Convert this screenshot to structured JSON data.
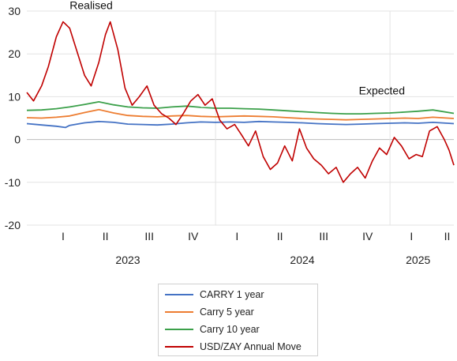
{
  "chart_data": {
    "type": "line",
    "y_ticks": [
      30,
      20,
      10,
      0,
      -10,
      -20
    ],
    "ylim": [
      -20,
      30
    ],
    "x_range": [
      "2022-12-01",
      "2025-05-15"
    ],
    "quarter_labels": [
      {
        "label": "I",
        "date": "2023-02-15"
      },
      {
        "label": "II",
        "date": "2023-05-15"
      },
      {
        "label": "III",
        "date": "2023-08-15"
      },
      {
        "label": "IV",
        "date": "2023-11-15"
      },
      {
        "label": "I",
        "date": "2024-02-15"
      },
      {
        "label": "II",
        "date": "2024-05-15"
      },
      {
        "label": "III",
        "date": "2024-08-15"
      },
      {
        "label": "IV",
        "date": "2024-11-15"
      },
      {
        "label": "I",
        "date": "2025-02-15"
      },
      {
        "label": "II",
        "date": "2025-05-01"
      }
    ],
    "year_labels": [
      {
        "label": "2023",
        "date": "2023-07-01"
      },
      {
        "label": "2024",
        "date": "2024-07-01"
      },
      {
        "label": "2025",
        "date": "2025-03-01"
      }
    ],
    "vertical_markers": [
      "2024-01-01",
      "2025-01-01"
    ],
    "annotations": [
      {
        "text": "Realised",
        "date": "2023-04-15",
        "y": 30.5
      },
      {
        "text": "Expected",
        "date": "2024-12-15",
        "y": 10.5
      }
    ],
    "grid": true,
    "legend_position": "bottom",
    "series": [
      {
        "name": "CARRY 1 year",
        "color": "#4472C4",
        "points": [
          [
            "2022-12-01",
            3.7
          ],
          [
            "2023-01-01",
            3.4
          ],
          [
            "2023-02-01",
            3.1
          ],
          [
            "2023-02-20",
            2.8
          ],
          [
            "2023-03-01",
            3.3
          ],
          [
            "2023-04-01",
            3.9
          ],
          [
            "2023-05-01",
            4.2
          ],
          [
            "2023-06-01",
            4.0
          ],
          [
            "2023-07-01",
            3.6
          ],
          [
            "2023-08-01",
            3.5
          ],
          [
            "2023-09-01",
            3.4
          ],
          [
            "2023-10-01",
            3.6
          ],
          [
            "2023-11-01",
            3.9
          ],
          [
            "2023-12-01",
            4.1
          ],
          [
            "2024-01-01",
            4.0
          ],
          [
            "2024-02-01",
            4.1
          ],
          [
            "2024-03-01",
            4.0
          ],
          [
            "2024-04-01",
            4.2
          ],
          [
            "2024-05-01",
            4.1
          ],
          [
            "2024-06-01",
            4.0
          ],
          [
            "2024-07-01",
            3.9
          ],
          [
            "2024-08-01",
            3.7
          ],
          [
            "2024-09-01",
            3.6
          ],
          [
            "2024-10-01",
            3.5
          ],
          [
            "2024-11-01",
            3.6
          ],
          [
            "2024-12-01",
            3.7
          ],
          [
            "2025-01-01",
            3.8
          ],
          [
            "2025-02-01",
            3.9
          ],
          [
            "2025-03-01",
            3.8
          ],
          [
            "2025-04-01",
            4.0
          ],
          [
            "2025-05-15",
            3.7
          ]
        ]
      },
      {
        "name": "Carry 5 year",
        "color": "#ED7D31",
        "points": [
          [
            "2022-12-01",
            5.1
          ],
          [
            "2023-01-01",
            5.0
          ],
          [
            "2023-02-01",
            5.2
          ],
          [
            "2023-03-01",
            5.5
          ],
          [
            "2023-04-01",
            6.3
          ],
          [
            "2023-05-01",
            7.0
          ],
          [
            "2023-06-01",
            6.2
          ],
          [
            "2023-07-01",
            5.6
          ],
          [
            "2023-08-01",
            5.4
          ],
          [
            "2023-09-01",
            5.3
          ],
          [
            "2023-10-01",
            5.5
          ],
          [
            "2023-11-01",
            5.6
          ],
          [
            "2023-12-01",
            5.4
          ],
          [
            "2024-01-01",
            5.3
          ],
          [
            "2024-02-01",
            5.4
          ],
          [
            "2024-03-01",
            5.5
          ],
          [
            "2024-04-01",
            5.4
          ],
          [
            "2024-05-01",
            5.3
          ],
          [
            "2024-06-01",
            5.1
          ],
          [
            "2024-07-01",
            4.9
          ],
          [
            "2024-08-01",
            4.8
          ],
          [
            "2024-09-01",
            4.7
          ],
          [
            "2024-10-01",
            4.6
          ],
          [
            "2024-11-01",
            4.7
          ],
          [
            "2024-12-01",
            4.8
          ],
          [
            "2025-01-01",
            4.9
          ],
          [
            "2025-02-01",
            5.0
          ],
          [
            "2025-03-01",
            4.9
          ],
          [
            "2025-04-01",
            5.2
          ],
          [
            "2025-05-15",
            4.9
          ]
        ]
      },
      {
        "name": "Carry 10 year",
        "color": "#3BA04A",
        "points": [
          [
            "2022-12-01",
            6.8
          ],
          [
            "2023-01-01",
            6.9
          ],
          [
            "2023-02-01",
            7.2
          ],
          [
            "2023-03-01",
            7.6
          ],
          [
            "2023-04-01",
            8.2
          ],
          [
            "2023-05-01",
            8.8
          ],
          [
            "2023-06-01",
            8.1
          ],
          [
            "2023-07-01",
            7.6
          ],
          [
            "2023-08-01",
            7.4
          ],
          [
            "2023-09-01",
            7.3
          ],
          [
            "2023-10-01",
            7.6
          ],
          [
            "2023-11-01",
            7.8
          ],
          [
            "2023-12-01",
            7.5
          ],
          [
            "2024-01-01",
            7.3
          ],
          [
            "2024-02-01",
            7.3
          ],
          [
            "2024-03-01",
            7.2
          ],
          [
            "2024-04-01",
            7.1
          ],
          [
            "2024-05-01",
            6.9
          ],
          [
            "2024-06-01",
            6.7
          ],
          [
            "2024-07-01",
            6.5
          ],
          [
            "2024-08-01",
            6.3
          ],
          [
            "2024-09-01",
            6.1
          ],
          [
            "2024-10-01",
            6.0
          ],
          [
            "2024-11-01",
            6.0
          ],
          [
            "2024-12-01",
            6.1
          ],
          [
            "2025-01-01",
            6.2
          ],
          [
            "2025-02-01",
            6.4
          ],
          [
            "2025-03-01",
            6.6
          ],
          [
            "2025-04-01",
            6.9
          ],
          [
            "2025-05-15",
            6.1
          ]
        ]
      },
      {
        "name": "USD/ZAY Annual Move",
        "color": "#C00000",
        "points": [
          [
            "2022-12-01",
            11.0
          ],
          [
            "2022-12-15",
            9.0
          ],
          [
            "2023-01-01",
            12.5
          ],
          [
            "2023-01-15",
            17.0
          ],
          [
            "2023-02-01",
            24.0
          ],
          [
            "2023-02-15",
            27.5
          ],
          [
            "2023-03-01",
            26.0
          ],
          [
            "2023-03-15",
            21.0
          ],
          [
            "2023-04-01",
            15.0
          ],
          [
            "2023-04-15",
            12.5
          ],
          [
            "2023-05-01",
            18.0
          ],
          [
            "2023-05-15",
            24.5
          ],
          [
            "2023-05-25",
            27.5
          ],
          [
            "2023-06-10",
            21.0
          ],
          [
            "2023-06-25",
            12.0
          ],
          [
            "2023-07-10",
            8.0
          ],
          [
            "2023-07-25",
            10.0
          ],
          [
            "2023-08-10",
            12.5
          ],
          [
            "2023-08-25",
            8.0
          ],
          [
            "2023-09-10",
            6.0
          ],
          [
            "2023-09-25",
            5.0
          ],
          [
            "2023-10-10",
            3.5
          ],
          [
            "2023-10-25",
            6.0
          ],
          [
            "2023-11-10",
            9.0
          ],
          [
            "2023-11-25",
            10.5
          ],
          [
            "2023-12-10",
            8.0
          ],
          [
            "2023-12-25",
            9.5
          ],
          [
            "2024-01-10",
            4.5
          ],
          [
            "2024-01-25",
            2.5
          ],
          [
            "2024-02-10",
            3.5
          ],
          [
            "2024-02-25",
            1.0
          ],
          [
            "2024-03-10",
            -1.5
          ],
          [
            "2024-03-25",
            2.0
          ],
          [
            "2024-04-10",
            -4.0
          ],
          [
            "2024-04-25",
            -7.0
          ],
          [
            "2024-05-10",
            -5.5
          ],
          [
            "2024-05-25",
            -1.5
          ],
          [
            "2024-06-10",
            -5.0
          ],
          [
            "2024-06-25",
            2.5
          ],
          [
            "2024-07-10",
            -2.0
          ],
          [
            "2024-07-25",
            -4.5
          ],
          [
            "2024-08-10",
            -6.0
          ],
          [
            "2024-08-25",
            -8.0
          ],
          [
            "2024-09-10",
            -6.5
          ],
          [
            "2024-09-25",
            -10.0
          ],
          [
            "2024-10-10",
            -8.0
          ],
          [
            "2024-10-25",
            -6.5
          ],
          [
            "2024-11-10",
            -9.0
          ],
          [
            "2024-11-25",
            -5.0
          ],
          [
            "2024-12-10",
            -2.0
          ],
          [
            "2024-12-25",
            -3.5
          ],
          [
            "2025-01-10",
            0.5
          ],
          [
            "2025-01-25",
            -1.5
          ],
          [
            "2025-02-10",
            -4.5
          ],
          [
            "2025-02-25",
            -3.5
          ],
          [
            "2025-03-10",
            -4.0
          ],
          [
            "2025-03-25",
            2.0
          ],
          [
            "2025-04-10",
            3.0
          ],
          [
            "2025-04-25",
            0.0
          ],
          [
            "2025-05-05",
            -2.5
          ],
          [
            "2025-05-15",
            -6.0
          ]
        ]
      }
    ]
  }
}
